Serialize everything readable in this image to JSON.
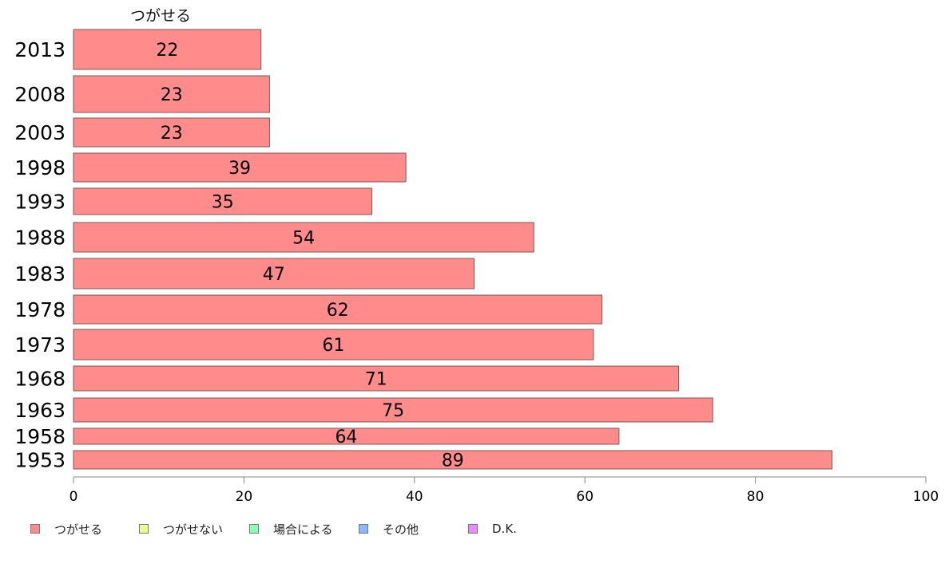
{
  "chart_data": {
    "type": "bar",
    "orientation": "horizontal",
    "stacked": true,
    "series_title": "つがせる",
    "categories": [
      "2013",
      "2008",
      "2003",
      "1998",
      "1993",
      "1988",
      "1983",
      "1978",
      "1973",
      "1968",
      "1963",
      "1958",
      "1953"
    ],
    "series": [
      {
        "name": "つがせる",
        "values": [
          22,
          23,
          23,
          39,
          35,
          54,
          47,
          62,
          61,
          71,
          75,
          64,
          89
        ]
      }
    ],
    "data_labels": [
      "22",
      "23",
      "23",
      "39",
      "35",
      "54",
      "47",
      "62",
      "61",
      "71",
      "75",
      "64",
      "89"
    ],
    "xlim": [
      0,
      100
    ],
    "x_ticks": [
      "0",
      "20",
      "40",
      "60",
      "80",
      "100"
    ],
    "grid": false,
    "legend_position": "bottom-left",
    "legend": [
      {
        "label": "つがせる",
        "color": "#ff8b8b"
      },
      {
        "label": "つがせない",
        "color": "#e8ff8b"
      },
      {
        "label": "場合による",
        "color": "#8bffb9"
      },
      {
        "label": "その他",
        "color": "#8bb9ff"
      },
      {
        "label": "D.K.",
        "color": "#e88bff"
      }
    ],
    "bar_color": "#ff8b8b",
    "bar_stroke": "#7a5a5a"
  }
}
